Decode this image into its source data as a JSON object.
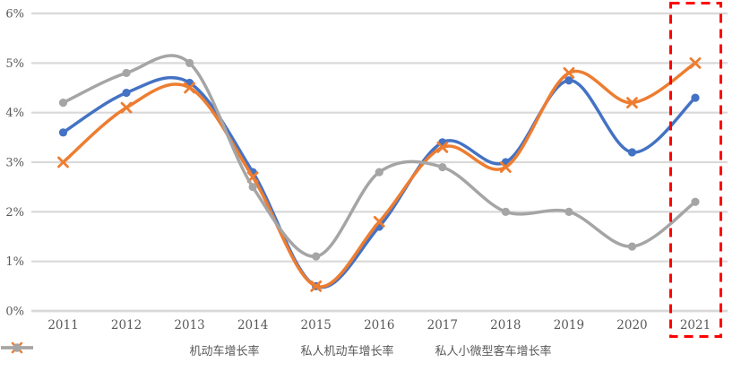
{
  "chart_data": {
    "type": "line",
    "title": "",
    "line_style": "smooth",
    "x_labels": [
      "2011",
      "2012",
      "2013",
      "2014",
      "2015",
      "2016",
      "2017",
      "2018",
      "2019",
      "2020",
      "2021"
    ],
    "series": [
      {
        "name": "机动车增长率",
        "color": "#4472C4",
        "marker": "circle",
        "values": [
          3.6,
          4.4,
          4.6,
          2.8,
          0.5,
          1.7,
          3.4,
          3.0,
          4.65,
          3.2,
          4.3
        ]
      },
      {
        "name": "私人机动车增长率",
        "color": "#ED7D31",
        "marker": "x",
        "values": [
          3.0,
          4.1,
          4.5,
          2.7,
          0.5,
          1.8,
          3.3,
          2.9,
          4.8,
          4.2,
          5.0
        ]
      },
      {
        "name": "私人小微型客车增长率",
        "color": "#A5A5A5",
        "marker": "circle",
        "values": [
          4.2,
          4.8,
          5.0,
          2.5,
          1.1,
          2.8,
          2.9,
          2.0,
          2.0,
          1.3,
          2.2
        ]
      }
    ],
    "ylim": [
      0,
      6
    ],
    "yticks": [
      0,
      1,
      2,
      3,
      4,
      5,
      6
    ],
    "ytick_labels": [
      "0%",
      "1%",
      "2%",
      "3%",
      "4%",
      "5%",
      "6%"
    ],
    "grid": true,
    "legend_position": "bottom",
    "annotation": {
      "type": "dashed-highlight-box",
      "target_x_label": "2021",
      "color": "#FF0000",
      "style": "dashed"
    }
  },
  "style": {
    "text_color": "#595959",
    "grid_color": "#D9D9D9",
    "background": "#FFFFFF",
    "highlight_color": "#FF0000"
  }
}
